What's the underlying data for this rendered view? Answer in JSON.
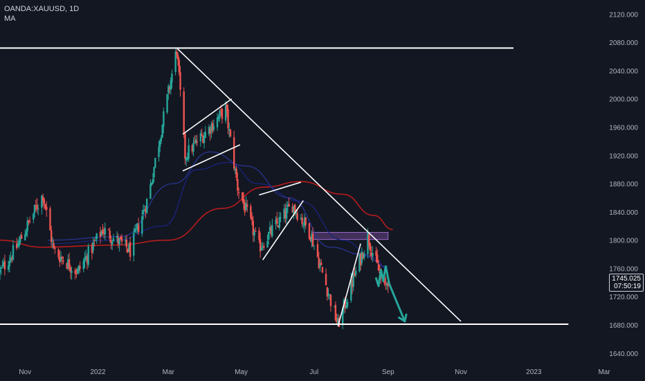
{
  "symbol_line": "OANDA:XAUUSD, 1D",
  "indicator_label": "MA",
  "last_price": "1745.025",
  "countdown": "07:50:19",
  "colors": {
    "background": "#131722",
    "up": "#26a69a",
    "down": "#ef5350",
    "ma_slow": "#b71c1c",
    "ma_fast": "#1a237e",
    "drawing": "#ffffff",
    "forecast_arrow": "#26a69a",
    "zone": "#7b4fa0"
  },
  "chart_data": {
    "type": "candlestick",
    "instrument": "OANDA:XAUUSD",
    "timeframe": "1D",
    "y_axis": {
      "min": 1630,
      "max": 2140,
      "ticks": [
        1640,
        1680,
        1720,
        1760,
        1800,
        1840,
        1880,
        1920,
        1960,
        2000,
        2040,
        2080,
        2120
      ],
      "tick_labels": [
        "1640.000",
        "1680.000",
        "1720.000",
        "1760.000",
        "1800.000",
        "1840.000",
        "1880.000",
        "1920.000",
        "1960.000",
        "2000.000",
        "2040.000",
        "2080.000",
        "2120.000"
      ]
    },
    "x_axis": {
      "start": "2021-10-11",
      "end": "2023-03-05",
      "ticks": [
        {
          "date": "2021-11-01",
          "label": "Nov"
        },
        {
          "date": "2022-01-01",
          "label": "2022"
        },
        {
          "date": "2022-03-01",
          "label": "Mar"
        },
        {
          "date": "2022-05-01",
          "label": "May"
        },
        {
          "date": "2022-07-01",
          "label": "Jul"
        },
        {
          "date": "2022-09-01",
          "label": "Sep"
        },
        {
          "date": "2022-11-01",
          "label": "Nov"
        },
        {
          "date": "2023-01-01",
          "label": "2023"
        },
        {
          "date": "2023-03-01",
          "label": "Mar"
        }
      ]
    },
    "price_path": [
      {
        "date": "2021-10-11",
        "price": 1755
      },
      {
        "date": "2021-10-25",
        "price": 1790
      },
      {
        "date": "2021-11-16",
        "price": 1865
      },
      {
        "date": "2021-11-25",
        "price": 1785
      },
      {
        "date": "2021-12-15",
        "price": 1755
      },
      {
        "date": "2022-01-05",
        "price": 1815
      },
      {
        "date": "2022-01-28",
        "price": 1785
      },
      {
        "date": "2022-02-12",
        "price": 1860
      },
      {
        "date": "2022-03-08",
        "price": 2070
      },
      {
        "date": "2022-03-15",
        "price": 1920
      },
      {
        "date": "2022-04-18",
        "price": 1985
      },
      {
        "date": "2022-04-28",
        "price": 1875
      },
      {
        "date": "2022-05-16",
        "price": 1790
      },
      {
        "date": "2022-06-13",
        "price": 1850
      },
      {
        "date": "2022-06-28",
        "price": 1810
      },
      {
        "date": "2022-07-21",
        "price": 1680
      },
      {
        "date": "2022-08-15",
        "price": 1805
      },
      {
        "date": "2022-08-29",
        "price": 1730
      },
      {
        "date": "2022-09-01",
        "price": 1745
      }
    ],
    "moving_averages": [
      {
        "color": "#b71c1c",
        "points": [
          {
            "date": "2021-10-11",
            "value": 1800
          },
          {
            "date": "2021-11-15",
            "value": 1790
          },
          {
            "date": "2022-01-15",
            "value": 1793
          },
          {
            "date": "2022-03-01",
            "value": 1800
          },
          {
            "date": "2022-04-15",
            "value": 1845
          },
          {
            "date": "2022-05-20",
            "value": 1875
          },
          {
            "date": "2022-06-20",
            "value": 1883
          },
          {
            "date": "2022-07-25",
            "value": 1865
          },
          {
            "date": "2022-08-20",
            "value": 1835
          },
          {
            "date": "2022-09-05",
            "value": 1815
          }
        ]
      },
      {
        "color": "#1a237e",
        "points": [
          {
            "date": "2021-11-20",
            "value": 1795
          },
          {
            "date": "2022-01-15",
            "value": 1800
          },
          {
            "date": "2022-02-25",
            "value": 1820
          },
          {
            "date": "2022-03-25",
            "value": 1900
          },
          {
            "date": "2022-04-20",
            "value": 1910
          },
          {
            "date": "2022-05-15",
            "value": 1880
          },
          {
            "date": "2022-06-20",
            "value": 1855
          },
          {
            "date": "2022-07-25",
            "value": 1800
          },
          {
            "date": "2022-08-20",
            "value": 1775
          },
          {
            "date": "2022-09-01",
            "value": 1758
          }
        ]
      },
      {
        "color": "#283593",
        "points": [
          {
            "date": "2021-11-20",
            "value": 1800
          },
          {
            "date": "2022-01-20",
            "value": 1805
          },
          {
            "date": "2022-03-05",
            "value": 1880
          },
          {
            "date": "2022-04-05",
            "value": 1925
          },
          {
            "date": "2022-05-05",
            "value": 1905
          },
          {
            "date": "2022-06-10",
            "value": 1860
          },
          {
            "date": "2022-07-15",
            "value": 1790
          },
          {
            "date": "2022-08-10",
            "value": 1780
          },
          {
            "date": "2022-09-01",
            "value": 1762
          }
        ]
      }
    ],
    "drawings": [
      {
        "type": "hline",
        "price": 2072,
        "from": "2021-10-11",
        "to": "2022-12-15"
      },
      {
        "type": "hline",
        "price": 1681,
        "from": "2021-10-11",
        "to": "2023-01-30"
      },
      {
        "type": "line",
        "p1": {
          "date": "2022-03-08",
          "price": 2072
        },
        "p2": {
          "date": "2022-11-01",
          "price": 1685
        }
      },
      {
        "type": "line",
        "p1": {
          "date": "2022-03-13",
          "price": 1950
        },
        "p2": {
          "date": "2022-04-23",
          "price": 2000
        }
      },
      {
        "type": "line",
        "p1": {
          "date": "2022-03-13",
          "price": 1898
        },
        "p2": {
          "date": "2022-04-30",
          "price": 1935
        }
      },
      {
        "type": "line",
        "p1": {
          "date": "2022-05-16",
          "price": 1864
        },
        "p2": {
          "date": "2022-06-20",
          "price": 1882
        }
      },
      {
        "type": "line",
        "p1": {
          "date": "2022-05-19",
          "price": 1772
        },
        "p2": {
          "date": "2022-06-22",
          "price": 1856
        }
      },
      {
        "type": "line",
        "p1": {
          "date": "2022-07-21",
          "price": 1678
        },
        "p2": {
          "date": "2022-08-09",
          "price": 1795
        }
      }
    ],
    "zone": {
      "from": "2022-06-29",
      "to": "2022-09-01",
      "top": 1811,
      "bottom": 1801
    },
    "forecast_path": [
      {
        "date": "2022-08-22",
        "price": 1746
      },
      {
        "date": "2022-08-24",
        "price": 1735
      },
      {
        "date": "2022-08-26",
        "price": 1758
      },
      {
        "date": "2022-08-28",
        "price": 1742
      },
      {
        "date": "2022-08-30",
        "price": 1763
      },
      {
        "date": "2022-09-02",
        "price": 1738
      },
      {
        "date": "2022-09-15",
        "price": 1685
      }
    ],
    "legend": "none",
    "grid": false
  }
}
